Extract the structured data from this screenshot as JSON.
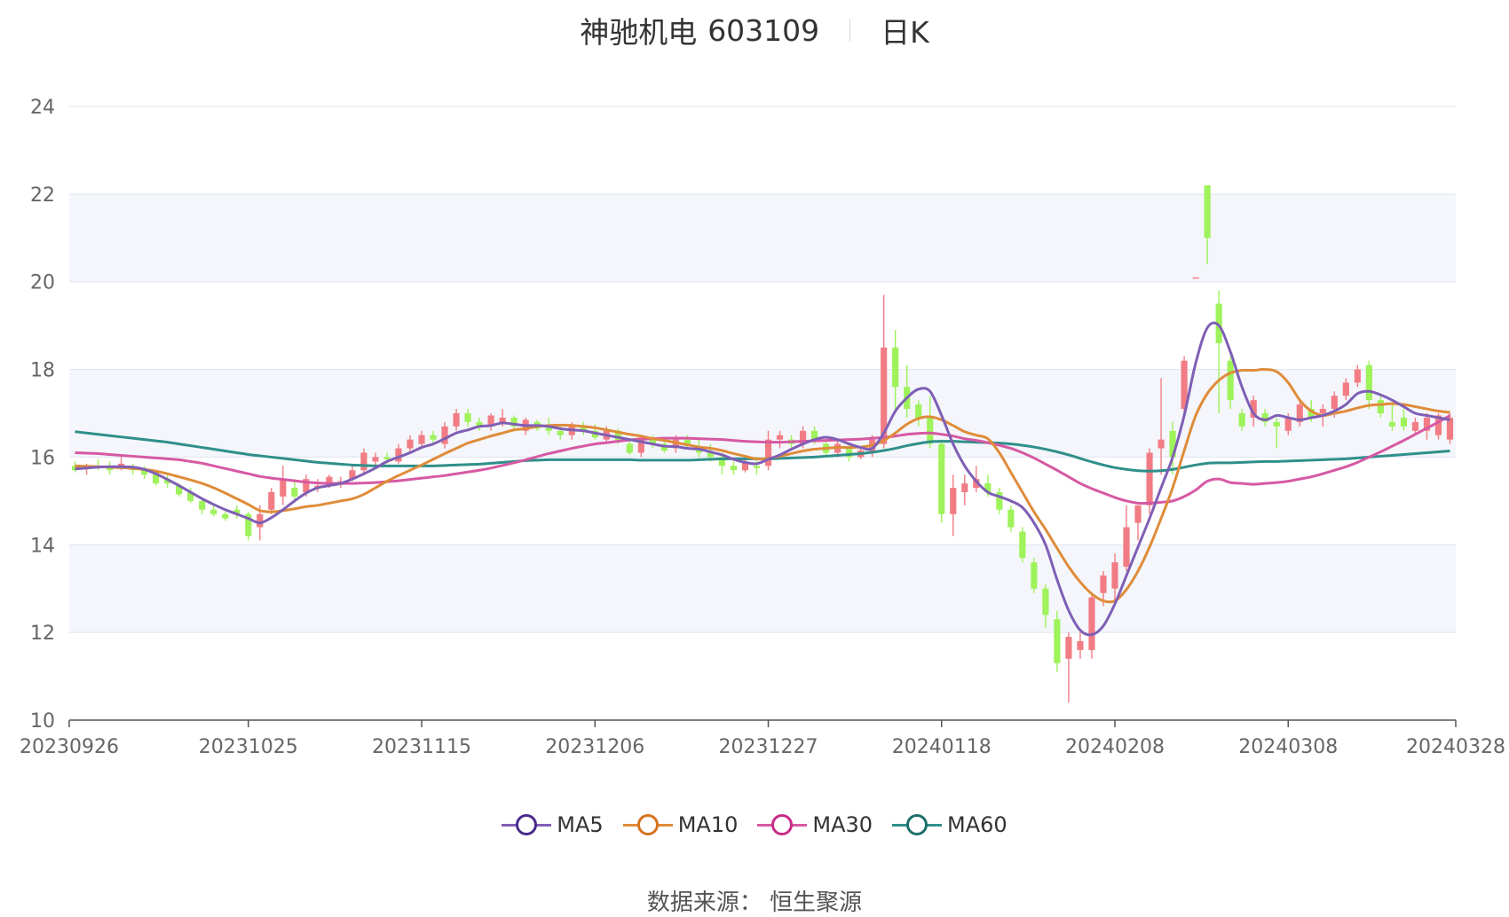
{
  "title": {
    "name": "神驰机电",
    "code": "603109",
    "period": "日K"
  },
  "source": "数据来源： 恒生聚源",
  "colors": {
    "up": "#f27c84",
    "down": "#9ef25a",
    "grid": "#dfe3ee",
    "band": "#f4f6fb",
    "axis": "#666666"
  },
  "chart_data": {
    "type": "candlestick",
    "ylim": [
      10,
      24
    ],
    "yticks": [
      10,
      12,
      14,
      16,
      18,
      20,
      22,
      24
    ],
    "x_tick_labels": [
      "20230926",
      "20231025",
      "20231115",
      "20231206",
      "20231227",
      "20240118",
      "20240208",
      "20240308",
      "20240328"
    ],
    "x_tick_index": [
      0,
      15,
      30,
      45,
      60,
      75,
      90,
      105,
      119
    ],
    "candles_ohlc": [
      [
        15.8,
        15.9,
        15.65,
        15.7
      ],
      [
        15.75,
        15.85,
        15.6,
        15.8
      ],
      [
        15.8,
        15.95,
        15.7,
        15.75
      ],
      [
        15.75,
        15.9,
        15.6,
        15.7
      ],
      [
        15.75,
        16.0,
        15.7,
        15.85
      ],
      [
        15.8,
        15.85,
        15.6,
        15.7
      ],
      [
        15.7,
        15.8,
        15.5,
        15.6
      ],
      [
        15.65,
        15.7,
        15.35,
        15.4
      ],
      [
        15.5,
        15.6,
        15.3,
        15.4
      ],
      [
        15.35,
        15.4,
        15.1,
        15.15
      ],
      [
        15.2,
        15.3,
        14.95,
        15.0
      ],
      [
        15.0,
        15.05,
        14.7,
        14.8
      ],
      [
        14.8,
        14.9,
        14.65,
        14.7
      ],
      [
        14.7,
        14.75,
        14.55,
        14.6
      ],
      [
        14.8,
        14.9,
        14.6,
        14.7
      ],
      [
        14.7,
        14.75,
        14.1,
        14.2
      ],
      [
        14.4,
        14.9,
        14.1,
        14.7
      ],
      [
        14.8,
        15.3,
        14.7,
        15.2
      ],
      [
        15.1,
        15.8,
        14.9,
        15.5
      ],
      [
        15.3,
        15.5,
        15.0,
        15.1
      ],
      [
        15.2,
        15.6,
        15.1,
        15.5
      ],
      [
        15.3,
        15.5,
        15.2,
        15.35
      ],
      [
        15.4,
        15.6,
        15.3,
        15.55
      ],
      [
        15.4,
        15.55,
        15.3,
        15.45
      ],
      [
        15.5,
        15.8,
        15.45,
        15.7
      ],
      [
        15.7,
        16.2,
        15.6,
        16.1
      ],
      [
        15.9,
        16.1,
        15.8,
        16.0
      ],
      [
        16.0,
        16.1,
        15.85,
        15.95
      ],
      [
        15.9,
        16.3,
        15.85,
        16.2
      ],
      [
        16.2,
        16.5,
        16.1,
        16.4
      ],
      [
        16.3,
        16.6,
        16.2,
        16.5
      ],
      [
        16.5,
        16.6,
        16.3,
        16.4
      ],
      [
        16.3,
        16.8,
        16.2,
        16.7
      ],
      [
        16.7,
        17.1,
        16.6,
        17.0
      ],
      [
        17.0,
        17.1,
        16.7,
        16.8
      ],
      [
        16.8,
        16.9,
        16.6,
        16.7
      ],
      [
        16.7,
        17.0,
        16.6,
        16.95
      ],
      [
        16.8,
        17.1,
        16.7,
        16.9
      ],
      [
        16.9,
        16.95,
        16.6,
        16.7
      ],
      [
        16.6,
        16.9,
        16.5,
        16.85
      ],
      [
        16.8,
        16.85,
        16.6,
        16.65
      ],
      [
        16.7,
        16.9,
        16.5,
        16.6
      ],
      [
        16.6,
        16.7,
        16.4,
        16.5
      ],
      [
        16.5,
        16.8,
        16.4,
        16.75
      ],
      [
        16.7,
        16.8,
        16.5,
        16.6
      ],
      [
        16.6,
        16.75,
        16.4,
        16.45
      ],
      [
        16.4,
        16.7,
        16.3,
        16.6
      ],
      [
        16.6,
        16.65,
        16.3,
        16.35
      ],
      [
        16.3,
        16.4,
        16.05,
        16.1
      ],
      [
        16.1,
        16.5,
        16.0,
        16.45
      ],
      [
        16.4,
        16.5,
        16.2,
        16.3
      ],
      [
        16.3,
        16.4,
        16.1,
        16.15
      ],
      [
        16.2,
        16.5,
        16.1,
        16.4
      ],
      [
        16.4,
        16.5,
        16.2,
        16.25
      ],
      [
        16.2,
        16.4,
        16.0,
        16.1
      ],
      [
        16.1,
        16.3,
        15.9,
        16.0
      ],
      [
        16.0,
        16.1,
        15.6,
        15.8
      ],
      [
        15.8,
        15.9,
        15.6,
        15.7
      ],
      [
        15.7,
        15.95,
        15.65,
        15.9
      ],
      [
        15.8,
        16.0,
        15.6,
        15.75
      ],
      [
        15.8,
        16.6,
        15.7,
        16.4
      ],
      [
        16.4,
        16.6,
        16.2,
        16.5
      ],
      [
        16.4,
        16.5,
        16.2,
        16.3
      ],
      [
        16.3,
        16.7,
        16.2,
        16.6
      ],
      [
        16.6,
        16.7,
        16.3,
        16.35
      ],
      [
        16.3,
        16.4,
        16.05,
        16.1
      ],
      [
        16.1,
        16.4,
        16.0,
        16.3
      ],
      [
        16.2,
        16.3,
        15.9,
        16.0
      ],
      [
        16.0,
        16.2,
        15.95,
        16.15
      ],
      [
        16.1,
        16.5,
        16.0,
        16.4
      ],
      [
        16.3,
        19.7,
        16.2,
        18.5
      ],
      [
        18.5,
        18.9,
        17.0,
        17.6
      ],
      [
        17.6,
        18.1,
        16.9,
        17.1
      ],
      [
        17.2,
        17.3,
        16.7,
        16.9
      ],
      [
        16.9,
        17.4,
        16.2,
        16.3
      ],
      [
        16.3,
        16.4,
        14.5,
        14.7
      ],
      [
        14.7,
        15.6,
        14.2,
        15.3
      ],
      [
        15.2,
        15.6,
        14.9,
        15.4
      ],
      [
        15.3,
        15.8,
        15.2,
        15.5
      ],
      [
        15.4,
        15.6,
        15.1,
        15.2
      ],
      [
        15.2,
        15.3,
        14.7,
        14.8
      ],
      [
        14.8,
        14.9,
        14.3,
        14.4
      ],
      [
        14.3,
        14.4,
        13.6,
        13.7
      ],
      [
        13.6,
        13.7,
        12.9,
        13.0
      ],
      [
        13.0,
        13.1,
        12.1,
        12.4
      ],
      [
        12.3,
        12.5,
        11.1,
        11.3
      ],
      [
        11.4,
        12.0,
        10.4,
        11.9
      ],
      [
        11.6,
        12.0,
        11.4,
        11.8
      ],
      [
        11.6,
        12.9,
        11.4,
        12.8
      ],
      [
        12.9,
        13.4,
        12.6,
        13.3
      ],
      [
        13.0,
        13.8,
        12.7,
        13.6
      ],
      [
        13.5,
        14.9,
        13.4,
        14.4
      ],
      [
        14.5,
        14.9,
        14.1,
        14.9
      ],
      [
        14.9,
        16.2,
        14.7,
        16.1
      ],
      [
        16.2,
        17.8,
        15.6,
        16.4
      ],
      [
        16.6,
        16.8,
        15.6,
        16.0
      ],
      [
        17.1,
        18.3,
        17.0,
        18.2
      ],
      [
        20.1,
        20.1,
        20.1,
        20.1
      ],
      [
        22.2,
        22.2,
        20.4,
        21.0
      ],
      [
        19.5,
        19.8,
        17.0,
        18.6
      ],
      [
        18.2,
        18.3,
        17.1,
        17.3
      ],
      [
        17.0,
        17.1,
        16.6,
        16.7
      ],
      [
        16.9,
        17.4,
        16.7,
        17.3
      ],
      [
        17.0,
        17.1,
        16.7,
        16.8
      ],
      [
        16.8,
        16.9,
        16.2,
        16.7
      ],
      [
        16.6,
        17.0,
        16.5,
        16.9
      ],
      [
        16.8,
        17.3,
        16.7,
        17.2
      ],
      [
        17.1,
        17.3,
        16.8,
        16.9
      ],
      [
        17.0,
        17.2,
        16.7,
        17.1
      ],
      [
        17.1,
        17.5,
        16.9,
        17.4
      ],
      [
        17.4,
        17.8,
        17.3,
        17.7
      ],
      [
        17.7,
        18.1,
        17.6,
        18.0
      ],
      [
        18.1,
        18.2,
        17.1,
        17.3
      ],
      [
        17.3,
        17.4,
        16.9,
        17.0
      ],
      [
        16.8,
        17.2,
        16.6,
        16.7
      ],
      [
        16.9,
        17.1,
        16.6,
        16.7
      ],
      [
        16.6,
        16.9,
        16.5,
        16.8
      ],
      [
        16.6,
        17.0,
        16.4,
        16.9
      ],
      [
        16.5,
        17.0,
        16.4,
        16.95
      ],
      [
        16.4,
        17.0,
        16.3,
        16.9
      ]
    ],
    "series": [
      {
        "name": "MA5",
        "color": "#7f5fb5",
        "values": [
          15.73,
          15.75,
          15.77,
          15.78,
          15.78,
          15.77,
          15.72,
          15.62,
          15.49,
          15.35,
          15.2,
          15.05,
          14.92,
          14.8,
          14.7,
          14.6,
          14.5,
          14.62,
          14.8,
          15.0,
          15.18,
          15.3,
          15.35,
          15.4,
          15.5,
          15.62,
          15.75,
          15.9,
          16.0,
          16.1,
          16.22,
          16.3,
          16.42,
          16.55,
          16.62,
          16.7,
          16.72,
          16.78,
          16.75,
          16.72,
          16.72,
          16.7,
          16.65,
          16.62,
          16.6,
          16.55,
          16.5,
          16.45,
          16.4,
          16.35,
          16.3,
          16.25,
          16.24,
          16.2,
          16.18,
          16.12,
          16.05,
          15.95,
          15.88,
          15.85,
          15.95,
          16.05,
          16.18,
          16.3,
          16.4,
          16.45,
          16.4,
          16.3,
          16.22,
          16.2,
          16.55,
          17.05,
          17.35,
          17.55,
          17.5,
          16.95,
          16.3,
          15.8,
          15.45,
          15.2,
          15.1,
          15.0,
          14.85,
          14.5,
          14.0,
          13.2,
          12.5,
          12.05,
          11.95,
          12.15,
          12.65,
          13.3,
          13.95,
          14.6,
          15.3,
          16.0,
          16.95,
          18.15,
          18.95,
          19.0,
          18.4,
          17.6,
          17.0,
          16.85,
          16.95,
          16.9,
          16.85,
          16.9,
          16.95,
          17.05,
          17.2,
          17.45,
          17.5,
          17.42,
          17.3,
          17.15,
          17.0,
          16.95,
          16.9,
          16.85
        ]
      },
      {
        "name": "MA10",
        "color": "#df8c3a",
        "values": [
          15.8,
          15.79,
          15.78,
          15.77,
          15.76,
          15.74,
          15.72,
          15.68,
          15.62,
          15.55,
          15.48,
          15.4,
          15.3,
          15.18,
          15.05,
          14.92,
          14.78,
          14.75,
          14.78,
          14.82,
          14.87,
          14.9,
          14.95,
          15.0,
          15.05,
          15.15,
          15.3,
          15.45,
          15.58,
          15.7,
          15.82,
          15.95,
          16.08,
          16.2,
          16.32,
          16.4,
          16.48,
          16.55,
          16.62,
          16.65,
          16.7,
          16.72,
          16.73,
          16.72,
          16.7,
          16.67,
          16.62,
          16.57,
          16.52,
          16.48,
          16.42,
          16.38,
          16.33,
          16.28,
          16.23,
          16.2,
          16.15,
          16.08,
          16.02,
          15.96,
          15.97,
          16.02,
          16.08,
          16.14,
          16.18,
          16.2,
          16.22,
          16.22,
          16.23,
          16.27,
          16.38,
          16.55,
          16.75,
          16.88,
          16.92,
          16.85,
          16.72,
          16.58,
          16.5,
          16.42,
          16.1,
          15.65,
          15.2,
          14.75,
          14.35,
          13.92,
          13.5,
          13.15,
          12.88,
          12.72,
          12.72,
          12.98,
          13.4,
          13.95,
          14.6,
          15.3,
          16.15,
          16.95,
          17.45,
          17.75,
          17.92,
          17.98,
          17.98,
          18.0,
          17.95,
          17.7,
          17.3,
          17.05,
          16.95,
          17.0,
          17.05,
          17.12,
          17.18,
          17.2,
          17.22,
          17.2,
          17.15,
          17.1,
          17.05,
          17.02
        ]
      },
      {
        "name": "MA30",
        "color": "#d659a3",
        "values": [
          16.1,
          16.09,
          16.08,
          16.06,
          16.04,
          16.02,
          16.0,
          15.98,
          15.96,
          15.94,
          15.9,
          15.86,
          15.8,
          15.74,
          15.68,
          15.62,
          15.56,
          15.52,
          15.49,
          15.46,
          15.43,
          15.41,
          15.4,
          15.4,
          15.4,
          15.41,
          15.42,
          15.44,
          15.46,
          15.49,
          15.52,
          15.55,
          15.58,
          15.62,
          15.66,
          15.7,
          15.75,
          15.81,
          15.87,
          15.94,
          16.01,
          16.08,
          16.14,
          16.2,
          16.25,
          16.3,
          16.33,
          16.36,
          16.39,
          16.41,
          16.42,
          16.43,
          16.43,
          16.43,
          16.42,
          16.41,
          16.4,
          16.38,
          16.36,
          16.35,
          16.34,
          16.34,
          16.35,
          16.36,
          16.37,
          16.38,
          16.39,
          16.4,
          16.41,
          16.43,
          16.45,
          16.48,
          16.52,
          16.54,
          16.55,
          16.52,
          16.48,
          16.42,
          16.38,
          16.33,
          16.27,
          16.2,
          16.1,
          15.98,
          15.84,
          15.7,
          15.55,
          15.4,
          15.28,
          15.18,
          15.08,
          15.0,
          14.95,
          14.95,
          14.97,
          15.0,
          15.1,
          15.25,
          15.45,
          15.5,
          15.42,
          15.4,
          15.38,
          15.4,
          15.42,
          15.45,
          15.5,
          15.55,
          15.62,
          15.7,
          15.78,
          15.88,
          16.0,
          16.12,
          16.25,
          16.38,
          16.52,
          16.66,
          16.8,
          16.95
        ]
      },
      {
        "name": "MA60",
        "color": "#2f8f8a",
        "values": [
          16.58,
          16.55,
          16.52,
          16.49,
          16.46,
          16.43,
          16.4,
          16.37,
          16.34,
          16.3,
          16.26,
          16.22,
          16.18,
          16.14,
          16.1,
          16.06,
          16.03,
          16.0,
          15.97,
          15.94,
          15.91,
          15.88,
          15.86,
          15.84,
          15.82,
          15.81,
          15.8,
          15.8,
          15.8,
          15.8,
          15.8,
          15.8,
          15.81,
          15.82,
          15.83,
          15.84,
          15.86,
          15.88,
          15.9,
          15.92,
          15.93,
          15.94,
          15.94,
          15.94,
          15.94,
          15.94,
          15.94,
          15.94,
          15.94,
          15.93,
          15.93,
          15.93,
          15.93,
          15.93,
          15.94,
          15.95,
          15.96,
          15.96,
          15.96,
          15.96,
          15.96,
          15.97,
          15.98,
          15.99,
          16.0,
          16.02,
          16.04,
          16.06,
          16.08,
          16.11,
          16.15,
          16.2,
          16.26,
          16.31,
          16.35,
          16.36,
          16.36,
          16.35,
          16.34,
          16.33,
          16.32,
          16.3,
          16.27,
          16.23,
          16.18,
          16.12,
          16.05,
          15.97,
          15.89,
          15.82,
          15.76,
          15.72,
          15.69,
          15.68,
          15.69,
          15.72,
          15.77,
          15.82,
          15.86,
          15.87,
          15.87,
          15.88,
          15.89,
          15.9,
          15.9,
          15.91,
          15.92,
          15.93,
          15.94,
          15.95,
          15.96,
          15.98,
          16.0,
          16.02,
          16.04,
          16.06,
          16.08,
          16.1,
          16.12,
          16.14
        ]
      }
    ]
  }
}
